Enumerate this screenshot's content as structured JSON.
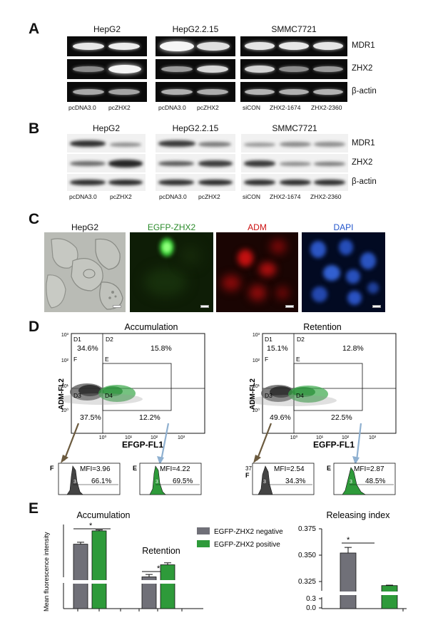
{
  "panels": {
    "a": "A",
    "b": "B",
    "c": "C",
    "d": "D",
    "e": "E"
  },
  "panel_a": {
    "groups": [
      {
        "title": "HepG2",
        "lanes": [
          "pcDNA3.0",
          "pcZHX2"
        ]
      },
      {
        "title": "HepG2.2.15",
        "lanes": [
          "pcDNA3.0",
          "pcZHX2"
        ]
      },
      {
        "title": "SMMC7721",
        "lanes": [
          "siCON",
          "ZHX2-1674",
          "ZHX2-2360"
        ]
      }
    ],
    "genes": [
      "MDR1",
      "ZHX2",
      "β-actin"
    ]
  },
  "panel_b": {
    "groups": [
      {
        "title": "HepG2",
        "lanes": [
          "pcDNA3.0",
          "pcZHX2"
        ]
      },
      {
        "title": "HepG2.2.15",
        "lanes": [
          "pcDNA3.0",
          "pcZHX2"
        ]
      },
      {
        "title": "SMMC7721",
        "lanes": [
          "siCON",
          "ZHX2-1674",
          "ZHX2-2360"
        ]
      }
    ],
    "genes": [
      "MDR1",
      "ZHX2",
      "β-actin"
    ]
  },
  "panel_c": {
    "images": [
      {
        "label": "HepG2",
        "color": "#444444"
      },
      {
        "label": "EGFP-ZHX2",
        "color": "#2a8a2a"
      },
      {
        "label": "ADM",
        "color": "#cc1111"
      },
      {
        "label": "DAPI",
        "color": "#2255cc"
      }
    ]
  },
  "panel_d": {
    "accumulation": {
      "title": "Accumulation",
      "y_axis": "ADM-FL2",
      "x_axis": "EFGP-FL1",
      "y_ticks": [
        "10³",
        "10²",
        "10¹",
        "10⁰"
      ],
      "x_ticks": [
        "10⁰",
        "10¹",
        "10²",
        "10³"
      ],
      "gates": [
        "D1",
        "D2",
        "D3",
        "D4",
        "F",
        "E"
      ],
      "quadrants": {
        "d1": "34.6%",
        "d2": "15.8%",
        "d3": "37.5%",
        "d4": "12.2%"
      },
      "hist_f": {
        "gate": "F",
        "mfi": "MFI=3.96",
        "pct": "66.1%",
        "marker": "3"
      },
      "hist_e": {
        "gate": "E",
        "mfi": "MFI=4.22",
        "pct": "69.5%",
        "marker": "3"
      }
    },
    "retention": {
      "title": "Retention",
      "y_axis": "ADM-FL2",
      "x_axis": "EGFP-FL1",
      "y_ticks": [
        "10³",
        "10²",
        "10¹",
        "10⁰"
      ],
      "x_ticks": [
        "10⁰",
        "10¹",
        "10²",
        "10³"
      ],
      "gates": [
        "D1",
        "D2",
        "D3",
        "D4",
        "F",
        "E"
      ],
      "quadrants": {
        "d1": "15.1%",
        "d2": "12.8%",
        "d3": "49.6%",
        "d4": "22.5%"
      },
      "hist_f": {
        "gate": "F",
        "mfi": "MFI=2.54",
        "pct": "34.3%",
        "marker": "3",
        "axis": "37"
      },
      "hist_e": {
        "gate": "E",
        "mfi": "MFI=2.87",
        "pct": "48.5%",
        "marker": "3"
      }
    }
  },
  "panel_e": {
    "colors": {
      "negative": "#707078",
      "positive": "#2e9a3a"
    },
    "legend": [
      "EGFP-ZHX2 negative",
      "EGFP-ZHX2 positive"
    ],
    "significance": "*",
    "chart_data": [
      {
        "type": "bar",
        "title": "",
        "group_labels": [
          "Accumulation",
          "Retention"
        ],
        "ylabel": "Mean fluorescence intensity",
        "series": [
          {
            "name": "EGFP-ZHX2 negative",
            "values": [
              3.8,
              2.45
            ]
          },
          {
            "name": "EGFP-ZHX2 positive",
            "values": [
              4.35,
              2.95
            ]
          }
        ],
        "errors": [
          [
            0.08,
            0.1
          ],
          [
            0.04,
            0.08
          ]
        ]
      },
      {
        "type": "bar",
        "title": "Releasing index",
        "y_ticks": [
          "0.375",
          "0.350",
          "0.325",
          "0.3",
          "0.0"
        ],
        "series": [
          {
            "name": "EGFP-ZHX2 negative",
            "values": [
              0.349
            ]
          },
          {
            "name": "EGFP-ZHX2 positive",
            "values": [
              0.314
            ]
          }
        ],
        "errors": [
          [
            0.006
          ],
          [
            0.0005
          ]
        ]
      }
    ]
  }
}
